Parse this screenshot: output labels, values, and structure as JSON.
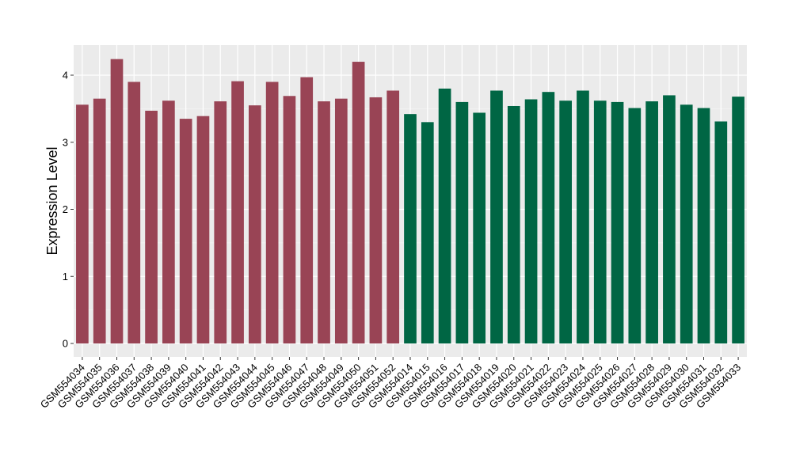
{
  "chart_data": {
    "type": "bar",
    "title": "",
    "xlabel": "",
    "ylabel": "Expression Level",
    "ylim": [
      0,
      4.45
    ],
    "yticks": [
      0,
      1,
      2,
      3,
      4
    ],
    "grid": true,
    "categories": [
      "GSM554034",
      "GSM554035",
      "GSM554036",
      "GSM554037",
      "GSM554038",
      "GSM554039",
      "GSM554040",
      "GSM554041",
      "GSM554042",
      "GSM554043",
      "GSM554044",
      "GSM554045",
      "GSM554046",
      "GSM554047",
      "GSM554048",
      "GSM554049",
      "GSM554050",
      "GSM554051",
      "GSM554052",
      "GSM554014",
      "GSM554015",
      "GSM554016",
      "GSM554017",
      "GSM554018",
      "GSM554019",
      "GSM554020",
      "GSM554021",
      "GSM554022",
      "GSM554023",
      "GSM554024",
      "GSM554025",
      "GSM554026",
      "GSM554027",
      "GSM554028",
      "GSM554029",
      "GSM554030",
      "GSM554031",
      "GSM554032",
      "GSM554033"
    ],
    "values": [
      3.56,
      3.65,
      4.24,
      3.9,
      3.47,
      3.62,
      3.35,
      3.39,
      3.61,
      3.91,
      3.55,
      3.9,
      3.69,
      3.97,
      3.61,
      3.65,
      4.2,
      3.67,
      3.77,
      3.42,
      3.3,
      3.8,
      3.6,
      3.44,
      3.77,
      3.54,
      3.64,
      3.75,
      3.62,
      3.77,
      3.62,
      3.6,
      3.51,
      3.61,
      3.7,
      3.56,
      3.51,
      3.31,
      3.68
    ],
    "groups": [
      {
        "color": "#994455",
        "count": 19
      },
      {
        "color": "#006644",
        "count": 20
      }
    ],
    "colors": {
      "panel_background": "#ebebeb",
      "grid_major": "#ffffff",
      "grid_minor": "#f5f5f5",
      "tick": "#333333"
    }
  }
}
